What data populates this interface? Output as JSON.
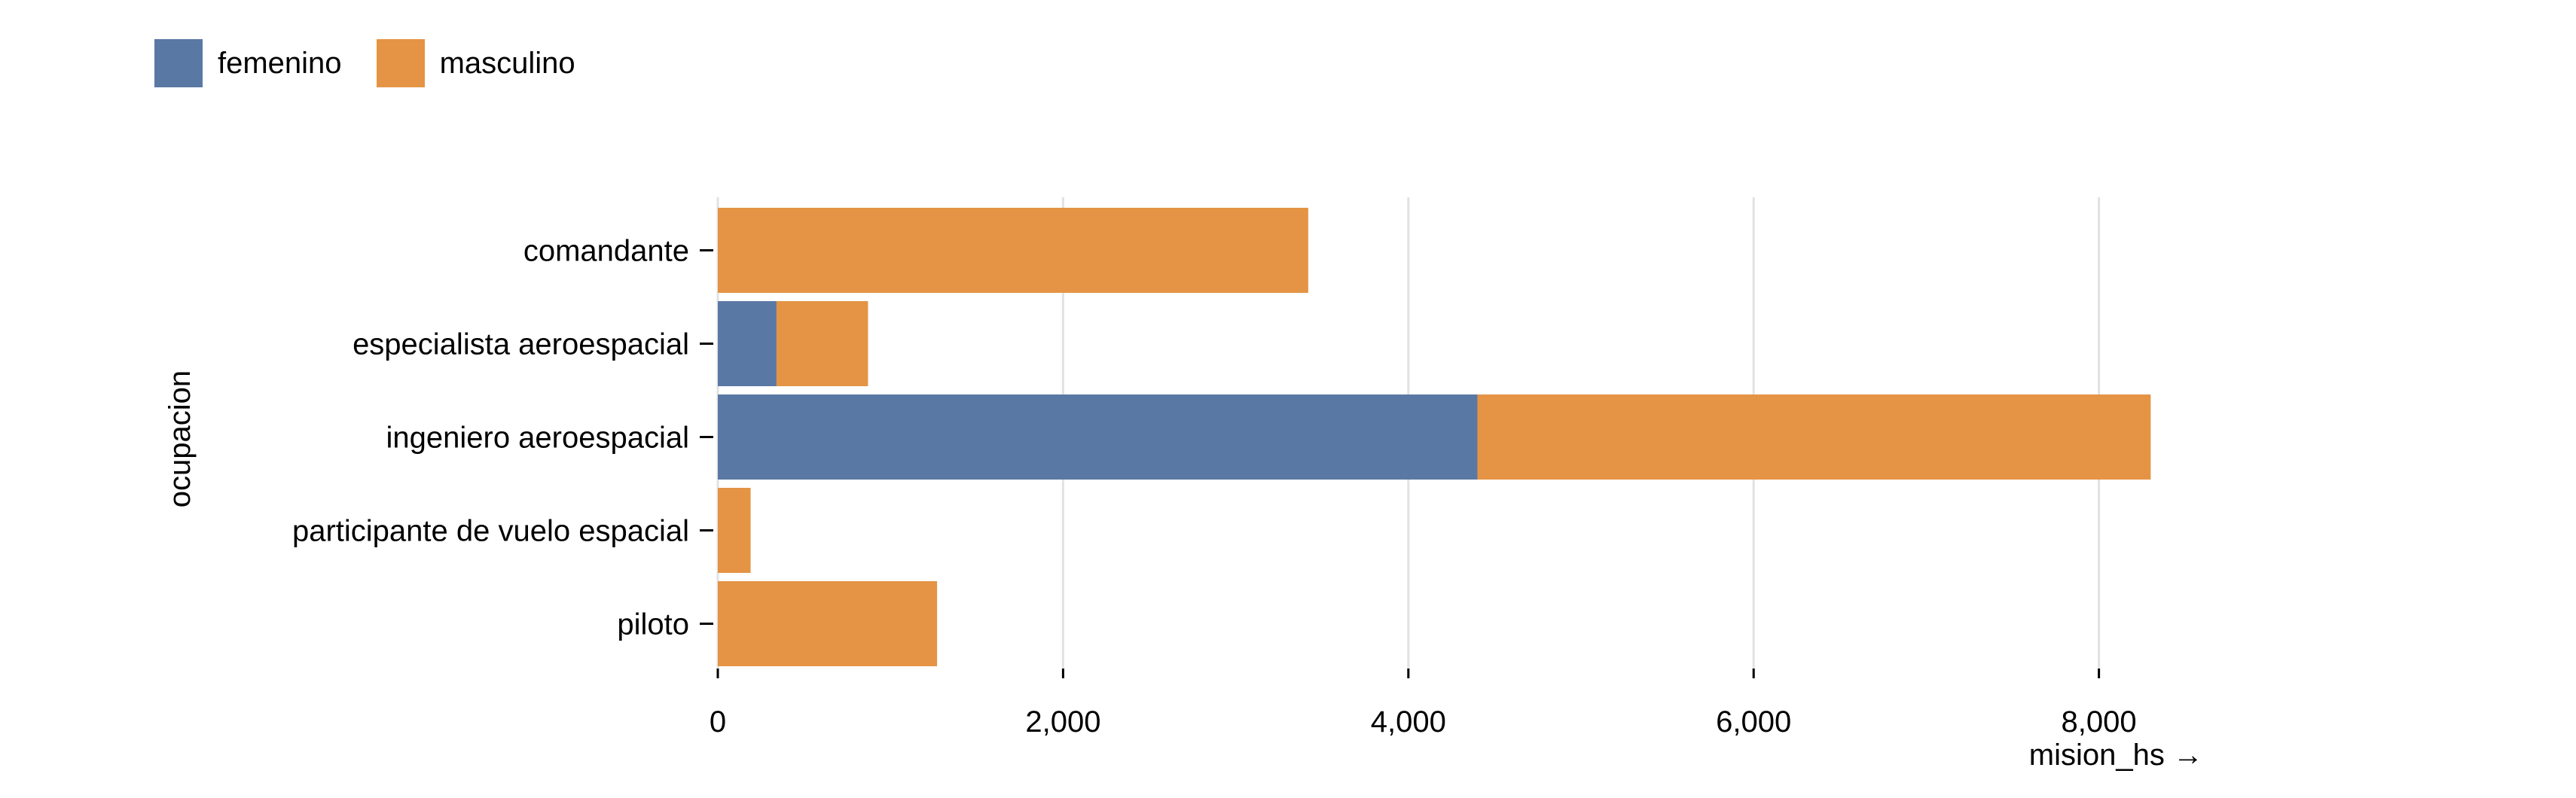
{
  "chart_data": {
    "type": "bar",
    "orientation": "horizontal",
    "stacked": true,
    "categories": [
      "comandante",
      "especialista aeroespacial",
      "ingeniero aeroespacial",
      "participante de vuelo espacial",
      "piloto"
    ],
    "series": [
      {
        "name": "femenino",
        "color": "#5a78a4",
        "values": [
          0,
          340,
          4400,
          0,
          0
        ]
      },
      {
        "name": "masculino",
        "color": "#e49444",
        "values": [
          3420,
          530,
          3900,
          190,
          1270
        ]
      }
    ],
    "xlabel": "mision_hs →",
    "ylabel": "ocupacion",
    "xlim": [
      0,
      10000
    ],
    "xticks": [
      0,
      2000,
      4000,
      6000,
      8000
    ],
    "xtick_labels": [
      "0",
      "2,000",
      "4,000",
      "6,000",
      "8,000"
    ],
    "grid": "vertical",
    "legend": "top-left"
  }
}
